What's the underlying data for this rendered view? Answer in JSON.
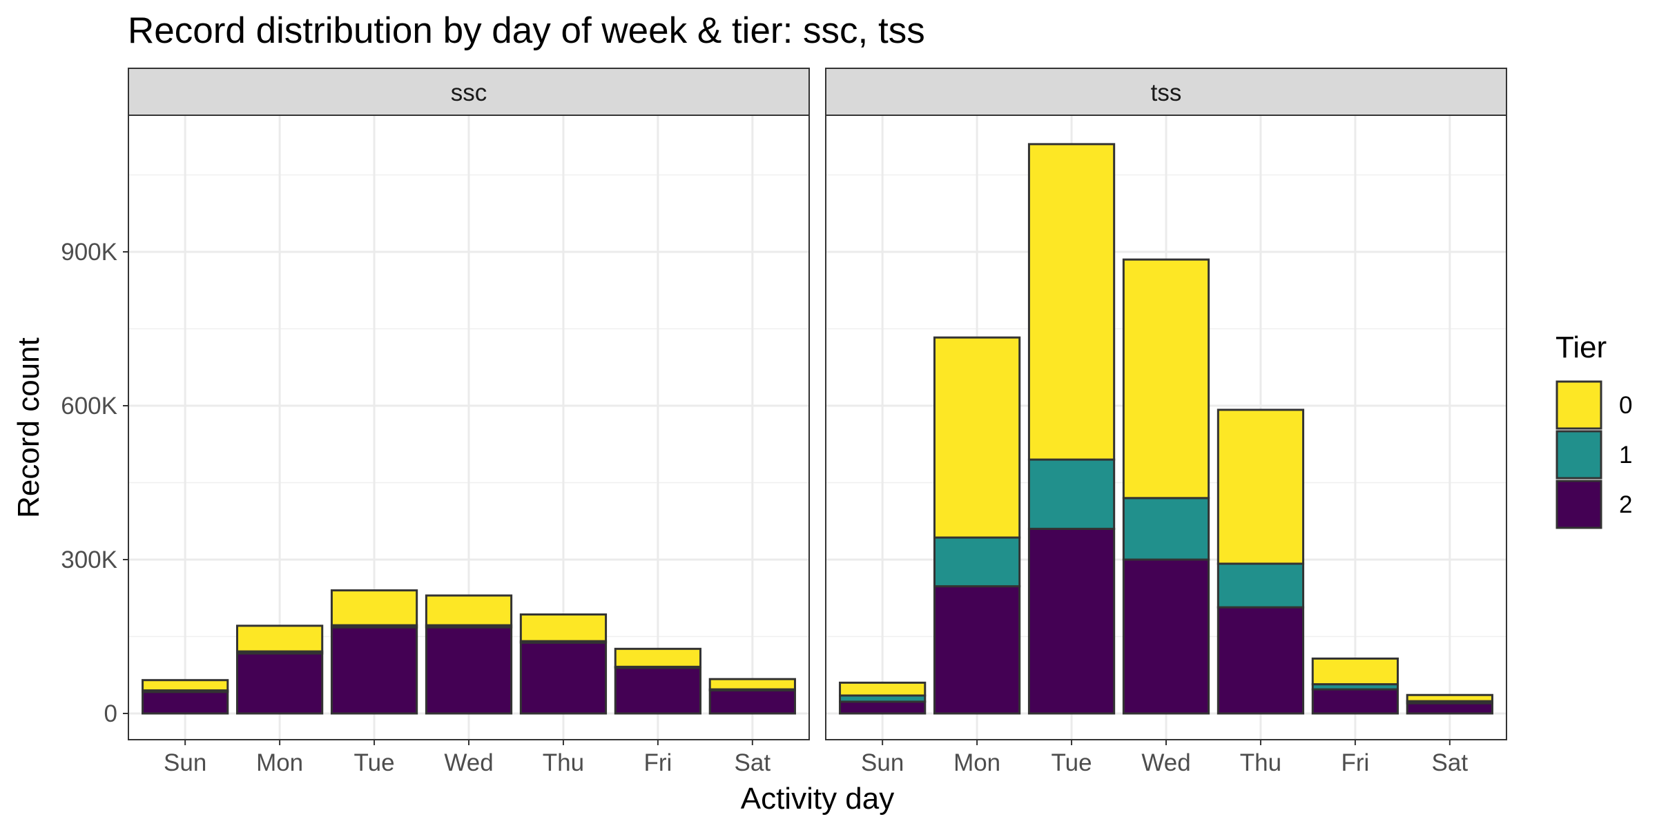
{
  "chart_data": {
    "type": "bar",
    "stacked": true,
    "title": "Record distribution by day of week & tier: ssc, tss",
    "xlabel": "Activity day",
    "ylabel": "Record count",
    "ylim": [
      0,
      1150000
    ],
    "y_ticks": [
      0,
      300000,
      600000,
      900000
    ],
    "y_tick_labels": [
      "0",
      "300K",
      "600K",
      "900K"
    ],
    "categories": [
      "Sun",
      "Mon",
      "Tue",
      "Wed",
      "Thu",
      "Fri",
      "Sat"
    ],
    "grid": true,
    "legend": {
      "title": "Tier",
      "placement": "right",
      "items": [
        {
          "label": "0",
          "color": "#FDE725"
        },
        {
          "label": "1",
          "color": "#21908C"
        },
        {
          "label": "2",
          "color": "#440154"
        }
      ]
    },
    "stack_order_bottom_to_top": [
      "2",
      "1",
      "0"
    ],
    "facets": [
      {
        "label": "ssc",
        "series": [
          {
            "name": "0",
            "color": "#FDE725",
            "values": [
              20000,
              50000,
              68000,
              58000,
              52000,
              35000,
              20000
            ]
          },
          {
            "name": "1",
            "color": "#21908C",
            "values": [
              3000,
              4000,
              4000,
              4000,
              3000,
              2000,
              2000
            ]
          },
          {
            "name": "2",
            "color": "#440154",
            "values": [
              42000,
              117000,
              168000,
              168000,
              138000,
              89000,
              45000
            ]
          }
        ]
      },
      {
        "label": "tss",
        "series": [
          {
            "name": "0",
            "color": "#FDE725",
            "values": [
              25000,
              390000,
              615000,
              465000,
              300000,
              50000,
              12000
            ]
          },
          {
            "name": "1",
            "color": "#21908C",
            "values": [
              12000,
              95000,
              135000,
              120000,
              85000,
              10000,
              4000
            ]
          },
          {
            "name": "2",
            "color": "#440154",
            "values": [
              23000,
              248000,
              360000,
              300000,
              207000,
              47000,
              20000
            ]
          }
        ]
      }
    ]
  }
}
